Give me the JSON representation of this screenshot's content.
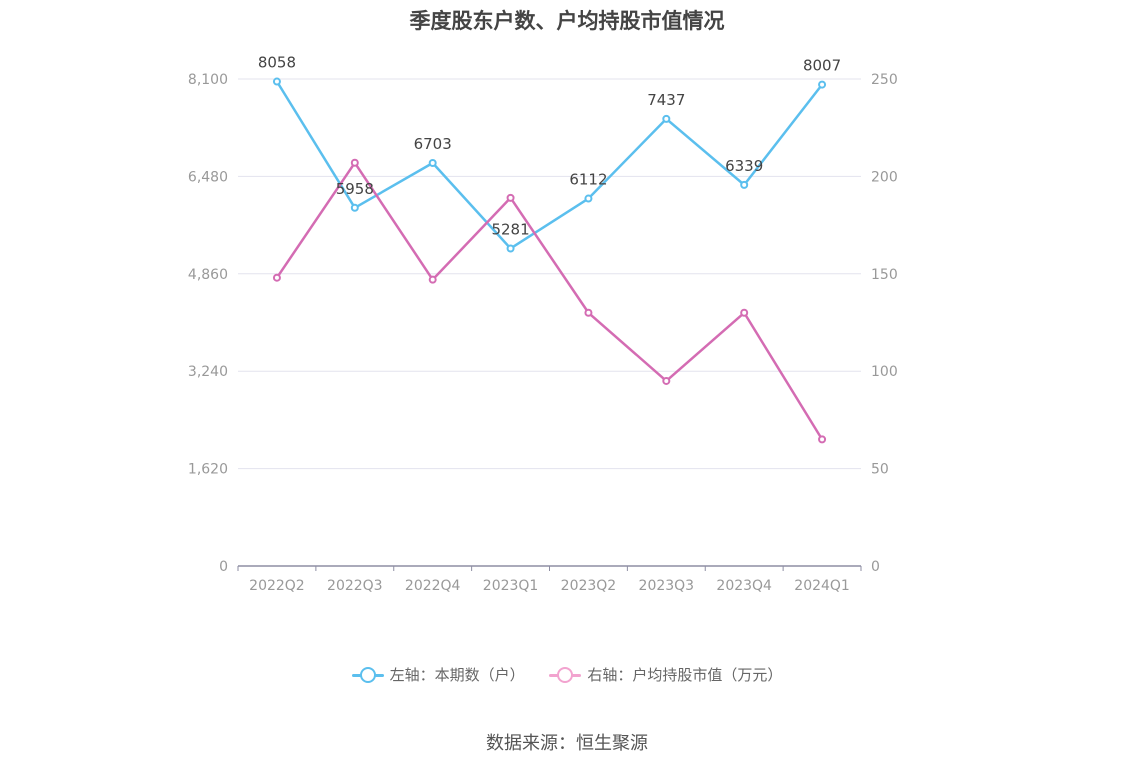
{
  "title": "季度股东户数、户均持股市值情况",
  "source": "数据来源：恒生聚源",
  "colors": {
    "series_left": "#5bbfee",
    "series_right": "#d46cb3",
    "legend_right": "#f2a3cf"
  },
  "chart_data": {
    "type": "line",
    "categories": [
      "2022Q2",
      "2022Q3",
      "2022Q4",
      "2023Q1",
      "2023Q2",
      "2023Q3",
      "2023Q4",
      "2024Q1"
    ],
    "y_left": {
      "ticks": [
        "0",
        "1,620",
        "3,240",
        "4,860",
        "6,480",
        "8,100"
      ],
      "range": [
        0,
        8100
      ]
    },
    "y_right": {
      "ticks": [
        "0",
        "50",
        "100",
        "150",
        "200",
        "250"
      ],
      "range": [
        0,
        250
      ]
    },
    "grid": true,
    "legend_position": "bottom",
    "series": [
      {
        "name": "左轴：本期数（户）",
        "axis": "left",
        "values": [
          8058,
          5958,
          6703,
          5281,
          6112,
          7437,
          6339,
          8007
        ],
        "labels": [
          "8058",
          "5958",
          "6703",
          "5281",
          "6112",
          "7437",
          "6339",
          "8007"
        ]
      },
      {
        "name": "右轴：户均持股市值（万元）",
        "axis": "right",
        "values": [
          148,
          207,
          147,
          189,
          130,
          95,
          130,
          65
        ]
      }
    ]
  }
}
